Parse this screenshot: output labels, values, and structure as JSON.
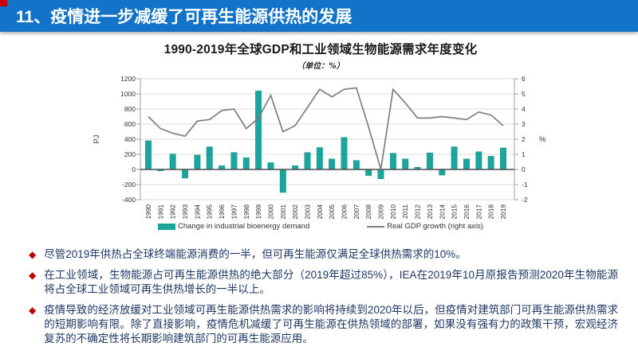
{
  "slide": {
    "header": {
      "title": "11、疫情进一步减缓了可再生能源供热的发展",
      "bg_color": "#1273C8",
      "corner_color": "#CC0000"
    },
    "bullets": {
      "marker": "◆",
      "text_color": "#1F3864",
      "marker_color": "#C00000",
      "items": [
        "尽管2019年供热占全球终端能源消费的一半，但可再生能源仅满足全球供热需求的10%。",
        "在工业领域，生物能源占可再生能源供热的绝大部分（2019年超过85%），IEA在2019年10月原报告预测2020年生物能源将占全球工业领域可再生供热增长的一半以上。",
        "疫情导致的经济放缓对工业领域可再生能源供热需求的影响将持续到2020年以后，但疫情对建筑部门可再生能源供热需求的短期影响有限。除了直接影响，疫情危机减缓了可再生能源在供热领域的部署，如果没有强有力的政策干预，宏观经济复苏的不确定性将长期影响建筑部门的可再生能源应用。"
      ]
    }
  },
  "chart_data": {
    "type": "combo: bar + line, dual axis",
    "title": "1990-2019年全球GDP和工业领域生物能源需求年度变化",
    "subtitle": "（单位：%）",
    "categories": [
      "1990",
      "1991",
      "1992",
      "1993",
      "1994",
      "1995",
      "1996",
      "1997",
      "1998",
      "1999",
      "2000",
      "2001",
      "2002",
      "2003",
      "2004",
      "2005",
      "2006",
      "2007",
      "2008",
      "2009",
      "2010",
      "2011",
      "2012",
      "2013",
      "2014",
      "2015",
      "2016",
      "2017",
      "2018",
      "2019"
    ],
    "series": [
      {
        "name": "Change in industrial bioenergy demand",
        "type": "bar",
        "axis": "left",
        "unit": "PJ",
        "color": "#1AA59D",
        "values": [
          380,
          -20,
          205,
          -115,
          190,
          300,
          50,
          225,
          155,
          1040,
          90,
          -305,
          50,
          225,
          290,
          140,
          425,
          120,
          -80,
          -125,
          215,
          140,
          30,
          220,
          -75,
          300,
          140,
          235,
          175,
          285
        ]
      },
      {
        "name": "Real GDP growth (right axis)",
        "type": "line",
        "axis": "right",
        "unit": "%",
        "color": "#7F7F7F",
        "values": [
          3.5,
          2.7,
          2.4,
          2.2,
          3.2,
          3.3,
          3.9,
          4.0,
          2.7,
          3.4,
          4.9,
          2.5,
          2.9,
          4.1,
          5.3,
          4.8,
          5.3,
          5.4,
          2.8,
          0.0,
          5.3,
          4.4,
          3.4,
          3.4,
          3.5,
          3.4,
          3.3,
          3.8,
          3.6,
          2.9
        ]
      }
    ],
    "left_axis": {
      "label": "PJ",
      "min": -400,
      "max": 1200,
      "step": 200
    },
    "right_axis": {
      "label": "%",
      "min": -2,
      "max": 6,
      "step": 1
    },
    "grid": true,
    "gridline_color": "#DCDCDC",
    "zero_line_color": "#4D4D4D",
    "legend_position": "bottom"
  }
}
